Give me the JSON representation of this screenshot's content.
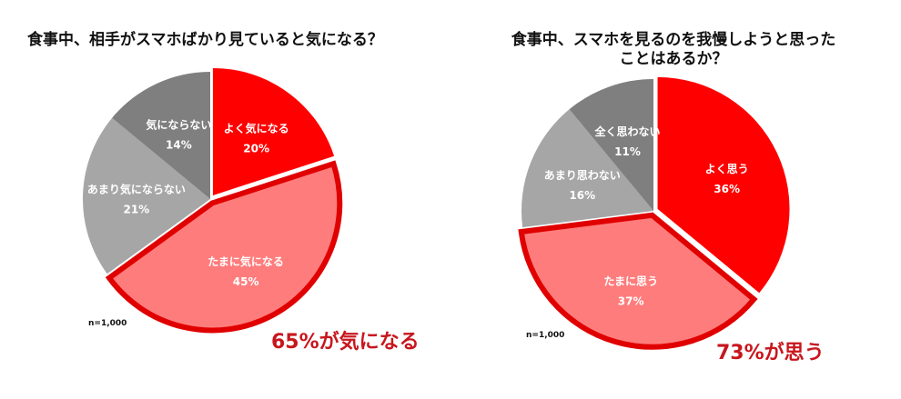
{
  "chart_data": [
    {
      "type": "pie",
      "title": "食事中、相手がスマホばかり見ていると気になる？",
      "note": "n=1,000",
      "annotation": "65%が気になる",
      "unit": "%",
      "slices": [
        {
          "label": "よく気になる",
          "value": 20,
          "display": "20%",
          "color": "#ff0000",
          "highlight": true
        },
        {
          "label": "たまに気になる",
          "value": 45,
          "display": "45%",
          "color": "#ff7c7c",
          "highlight": true,
          "outlined": true
        },
        {
          "label": "あまり気にならない",
          "value": 21,
          "display": "21%",
          "color": "#a6a6a6"
        },
        {
          "label": "気にならない",
          "value": 14,
          "display": "14%",
          "color": "#7f7f7f"
        }
      ]
    },
    {
      "type": "pie",
      "title": "食事中、スマホを見るのを我慢しようと思ったことはあるか？",
      "note": "n=1,000",
      "annotation": "73%が思う",
      "unit": "%",
      "slices": [
        {
          "label": "よく思う",
          "value": 36,
          "display": "36%",
          "color": "#ff0000",
          "highlight": true
        },
        {
          "label": "たまに思う",
          "value": 37,
          "display": "37%",
          "color": "#ff7c7c",
          "highlight": true,
          "outlined": true
        },
        {
          "label": "あまり思わない",
          "value": 16,
          "display": "16%",
          "color": "#a6a6a6"
        },
        {
          "label": "全く思わない",
          "value": 11,
          "display": "11%",
          "color": "#7f7f7f"
        }
      ]
    }
  ],
  "colors": {
    "outline": "#e00000",
    "annotation": "#c8161d"
  }
}
